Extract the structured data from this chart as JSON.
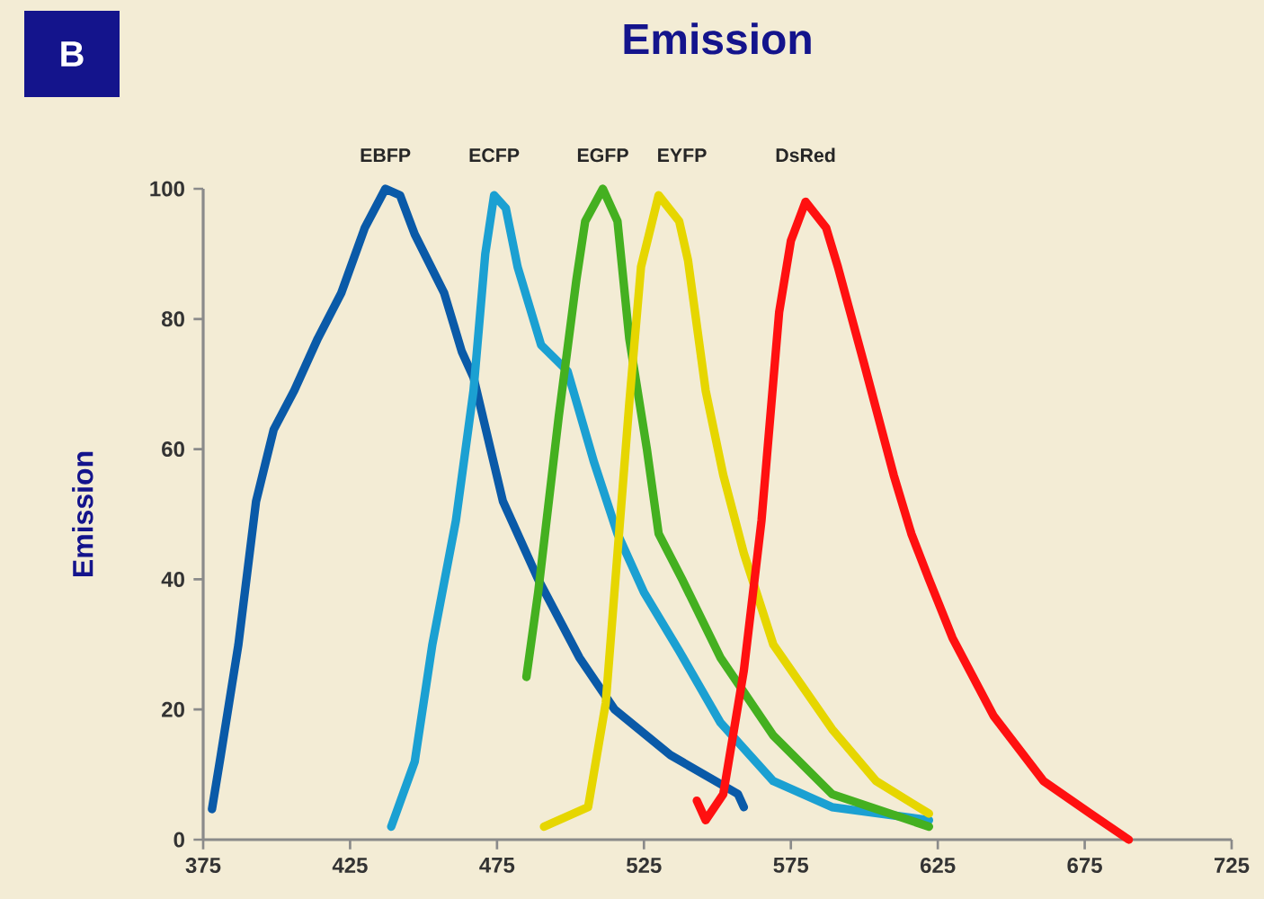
{
  "chart_data": {
    "type": "line",
    "title": "Emission",
    "ylabel": "Emission",
    "annotations": [
      "B"
    ],
    "xlim": [
      375,
      725
    ],
    "xticks": [
      375,
      425,
      475,
      525,
      575,
      625,
      675,
      725
    ],
    "ylim": [
      0,
      100
    ],
    "yticks": [
      0,
      20,
      40,
      60,
      80,
      100
    ],
    "grid": false,
    "legend": false,
    "marker": "none",
    "line_style": "solid",
    "series": [
      {
        "name": "EBFP",
        "color": "#0a5aa8",
        "x": [
          378,
          381,
          387,
          393,
          399,
          406,
          414,
          422,
          430,
          437,
          442,
          447,
          457,
          463,
          467,
          477,
          489,
          503,
          515,
          534,
          557,
          559
        ],
        "values": [
          4.7,
          13,
          30,
          52,
          63,
          69,
          77,
          84,
          94,
          100,
          99,
          93,
          84,
          75,
          71,
          52,
          40,
          28,
          20,
          13,
          7,
          5
        ]
      },
      {
        "name": "ECFP",
        "color": "#1ba0d2",
        "x": [
          439,
          447,
          453,
          461,
          467,
          471,
          474,
          478,
          482,
          490,
          499,
          508,
          516,
          525,
          537,
          551,
          569,
          589,
          622
        ],
        "values": [
          2,
          12,
          30,
          49,
          69,
          90,
          99,
          97,
          88,
          76,
          72,
          58,
          47,
          38,
          29,
          18,
          9,
          5,
          3
        ]
      },
      {
        "name": "EGFP",
        "color": "#44b020",
        "x": [
          485,
          489,
          496,
          502,
          505,
          511,
          516,
          520,
          526,
          530,
          538,
          551,
          569,
          589,
          622
        ],
        "values": [
          25,
          38,
          65,
          86,
          95,
          100,
          95,
          77,
          60,
          47,
          40,
          28,
          16,
          7,
          2
        ]
      },
      {
        "name": "EYFP",
        "color": "#e6d600",
        "x": [
          491,
          506,
          512,
          516,
          520,
          524,
          530,
          537,
          540,
          546,
          552,
          559,
          569,
          589,
          604,
          622
        ],
        "values": [
          2,
          5,
          21,
          44,
          67,
          88,
          99,
          95,
          89,
          69,
          56,
          44,
          30,
          17,
          9,
          4
        ]
      },
      {
        "name": "DsRed",
        "color": "#ff1010",
        "x": [
          543,
          546,
          552,
          559,
          565,
          571,
          575,
          580,
          587,
          591,
          600,
          610,
          616,
          622,
          630,
          644,
          661,
          677,
          690
        ],
        "values": [
          6,
          3,
          7,
          26,
          49,
          81,
          92,
          98,
          94,
          88,
          73,
          56,
          47,
          40,
          31,
          19,
          9,
          4,
          0
        ]
      }
    ]
  }
}
